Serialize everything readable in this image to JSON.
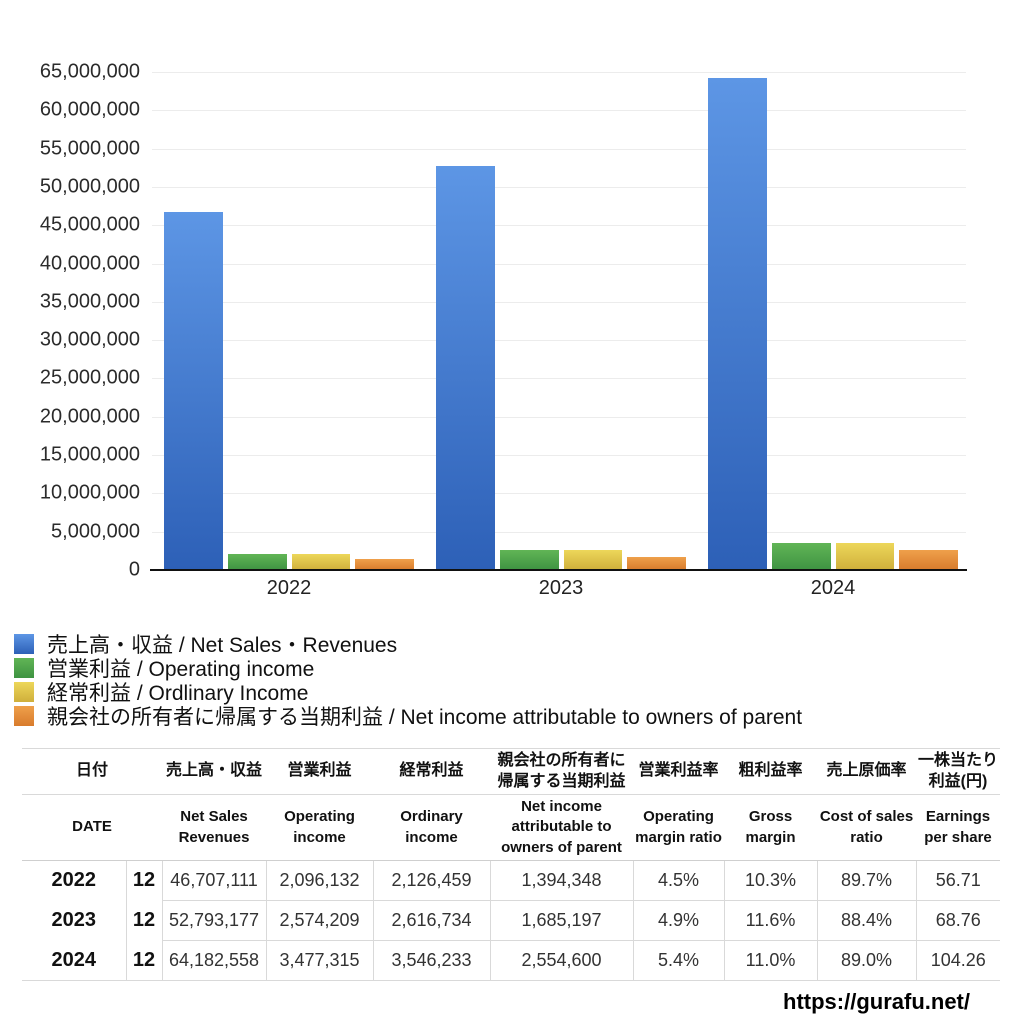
{
  "chart_data": {
    "type": "bar",
    "categories": [
      "2022",
      "2023",
      "2024"
    ],
    "series": [
      {
        "key": "net-sales",
        "name": "売上高・収益 / Net Sales・Revenues",
        "values": [
          46707111,
          52793177,
          64182558
        ],
        "color_top": "#5D96E5",
        "color_bottom": "#2D60B7"
      },
      {
        "key": "operating-income",
        "name": "営業利益 / Operating income",
        "values": [
          2096132,
          2574209,
          3477315
        ],
        "color_top": "#61B556",
        "color_bottom": "#3E9342"
      },
      {
        "key": "ordinary-income",
        "name": "経常利益 / Ordlinary Income",
        "values": [
          2126459,
          2616734,
          3546233
        ],
        "color_top": "#EDD75A",
        "color_bottom": "#CFAF3B"
      },
      {
        "key": "net-income-parent",
        "name": "親会社の所有者に帰属する当期利益 / Net income attributable to owners of parent",
        "values": [
          1394348,
          1685197,
          2554600
        ],
        "color_top": "#EFA04B",
        "color_bottom": "#D87B2C"
      }
    ],
    "ylim": [
      0,
      65000000
    ],
    "y_tick_step": 5000000,
    "y_tick_labels": [
      "65,000,000",
      "60,000,000",
      "55,000,000",
      "50,000,000",
      "45,000,000",
      "40,000,000",
      "35,000,000",
      "30,000,000",
      "25,000,000",
      "20,000,000",
      "15,000,000",
      "10,000,000",
      "5,000,000",
      "0"
    ],
    "grid": true,
    "legend_position": "bottom-left",
    "title": ""
  },
  "table": {
    "ja": [
      "日付",
      "売上高・収益",
      "営業利益",
      "経常利益",
      "親会社の所有者に帰属する当期利益",
      "営業利益率",
      "粗利益率",
      "売上原価率",
      "一株当たり利益(円)"
    ],
    "en": [
      "DATE",
      "Net Sales Revenues",
      "Operating income",
      "Ordinary income",
      "Net income attributable to owners of parent",
      "Operating margin ratio",
      "Gross margin",
      "Cost of sales ratio",
      "Earnings per share"
    ],
    "rows": [
      {
        "year": "2022",
        "month": "12",
        "values": [
          "46,707,111",
          "2,096,132",
          "2,126,459",
          "1,394,348",
          "4.5%",
          "10.3%",
          "89.7%",
          "56.71"
        ]
      },
      {
        "year": "2023",
        "month": "12",
        "values": [
          "52,793,177",
          "2,574,209",
          "2,616,734",
          "1,685,197",
          "4.9%",
          "11.6%",
          "88.4%",
          "68.76"
        ]
      },
      {
        "year": "2024",
        "month": "12",
        "values": [
          "64,182,558",
          "3,477,315",
          "3,546,233",
          "2,554,600",
          "5.4%",
          "11.0%",
          "89.0%",
          "104.26"
        ]
      }
    ]
  },
  "footer": {
    "url": "https://gurafu.net/"
  }
}
